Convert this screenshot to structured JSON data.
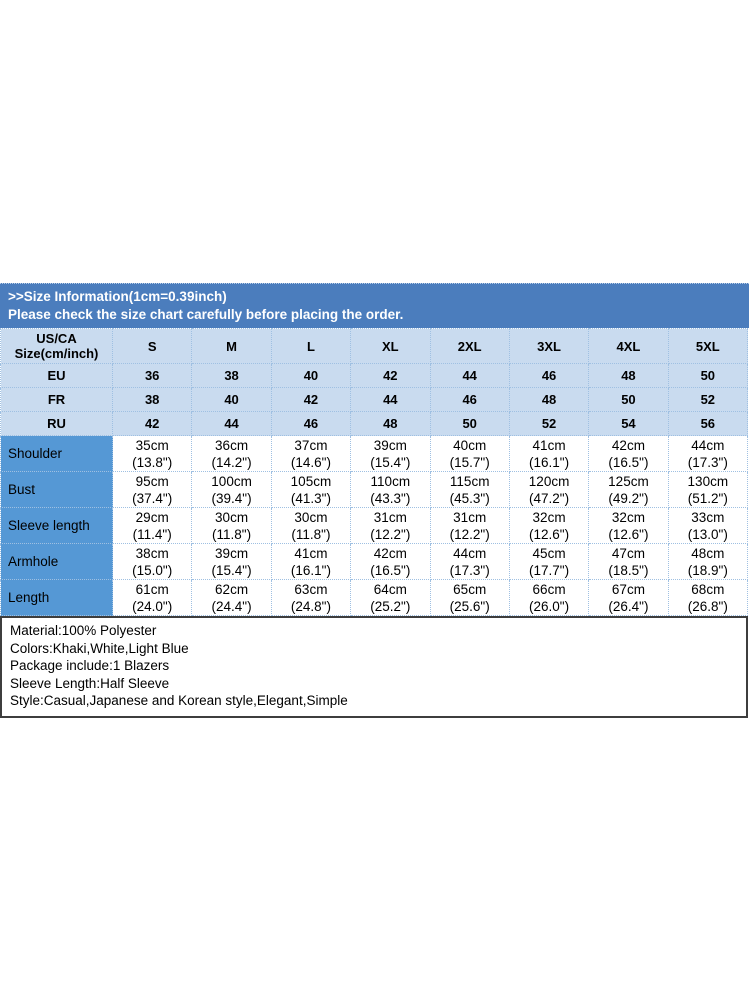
{
  "banner": {
    "line1": ">>Size Information(1cm=0.39inch)",
    "line2": "Please check the size chart carefully before placing the order."
  },
  "size_table": {
    "header": {
      "label_line1": "US/CA",
      "label_line2": "Size(cm/inch)",
      "sizes": [
        "S",
        "M",
        "L",
        "XL",
        "2XL",
        "3XL",
        "4XL",
        "5XL"
      ]
    },
    "region_rows": [
      {
        "label": "EU",
        "values": [
          "36",
          "38",
          "40",
          "42",
          "44",
          "46",
          "48",
          "50"
        ]
      },
      {
        "label": "FR",
        "values": [
          "38",
          "40",
          "42",
          "44",
          "46",
          "48",
          "50",
          "52"
        ]
      },
      {
        "label": "RU",
        "values": [
          "42",
          "44",
          "46",
          "48",
          "50",
          "52",
          "54",
          "56"
        ]
      }
    ],
    "measurement_rows": [
      {
        "label": "Shoulder",
        "cm": [
          "35cm",
          "36cm",
          "37cm",
          "39cm",
          "40cm",
          "41cm",
          "42cm",
          "44cm"
        ],
        "inch": [
          "(13.8\")",
          "(14.2\")",
          "(14.6\")",
          "(15.4\")",
          "(15.7\")",
          "(16.1\")",
          "(16.5\")",
          "(17.3\")"
        ]
      },
      {
        "label": "Bust",
        "cm": [
          "95cm",
          "100cm",
          "105cm",
          "110cm",
          "115cm",
          "120cm",
          "125cm",
          "130cm"
        ],
        "inch": [
          "(37.4\")",
          "(39.4\")",
          "(41.3\")",
          "(43.3\")",
          "(45.3\")",
          "(47.2\")",
          "(49.2\")",
          "(51.2\")"
        ]
      },
      {
        "label": "Sleeve length",
        "cm": [
          "29cm",
          "30cm",
          "30cm",
          "31cm",
          "31cm",
          "32cm",
          "32cm",
          "33cm"
        ],
        "inch": [
          "(11.4\")",
          "(11.8\")",
          "(11.8\")",
          "(12.2\")",
          "(12.2\")",
          "(12.6\")",
          "(12.6\")",
          "(13.0\")"
        ]
      },
      {
        "label": "Armhole",
        "cm": [
          "38cm",
          "39cm",
          "41cm",
          "42cm",
          "44cm",
          "45cm",
          "47cm",
          "48cm"
        ],
        "inch": [
          "(15.0\")",
          "(15.4\")",
          "(16.1\")",
          "(16.5\")",
          "(17.3\")",
          "(17.7\")",
          "(18.5\")",
          "(18.9\")"
        ]
      },
      {
        "label": "Length",
        "cm": [
          "61cm",
          "62cm",
          "63cm",
          "64cm",
          "65cm",
          "66cm",
          "67cm",
          "68cm"
        ],
        "inch": [
          "(24.0\")",
          "(24.4\")",
          "(24.8\")",
          "(25.2\")",
          "(25.6\")",
          "(26.0\")",
          "(26.4\")",
          "(26.8\")"
        ]
      }
    ]
  },
  "product_info": {
    "lines": [
      "Material:100% Polyester",
      "Colors:Khaki,White,Light Blue",
      "Package include:1 Blazers",
      "Sleeve Length:Half Sleeve",
      "Style:Casual,Japanese and Korean style,Elegant,Simple"
    ]
  },
  "colors": {
    "banner_bg": "#4b7dbd",
    "banner_text": "#ffffff",
    "size_row_bg": "#c9dbef",
    "label_col_bg": "#5598d5",
    "table_text": "#000000",
    "info_border": "#3d3d3d",
    "page_bg": "#ffffff"
  }
}
